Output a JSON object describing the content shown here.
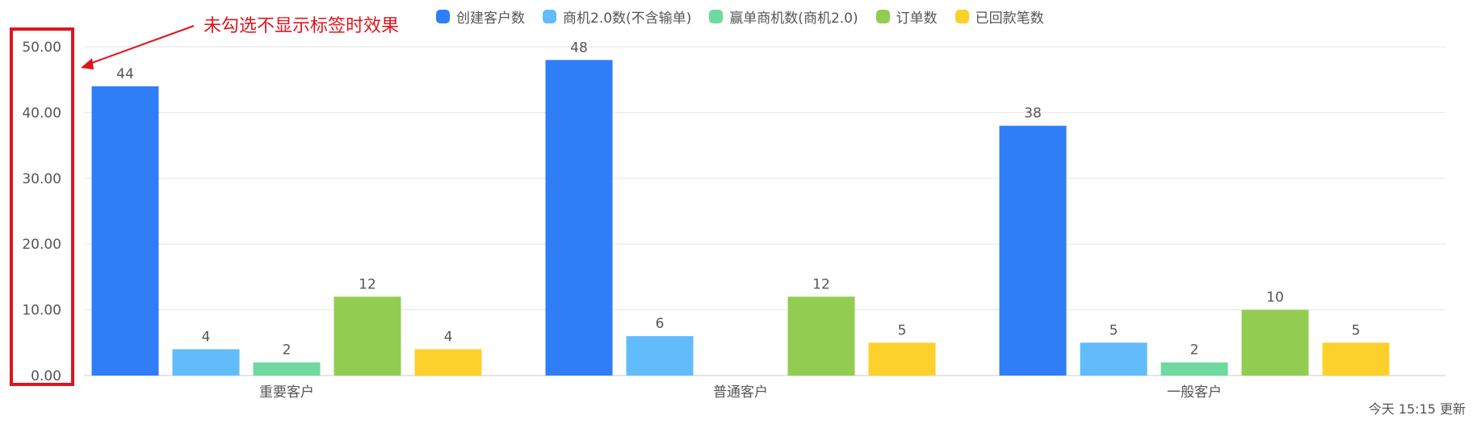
{
  "annotation": "未勾选不显示标签时效果",
  "footer": "今天 15:15 更新",
  "chart_data": {
    "type": "bar",
    "categories": [
      "重要客户",
      "普通客户",
      "一般客户"
    ],
    "ylim": [
      0,
      50
    ],
    "yticks": [
      "0.00",
      "10.00",
      "20.00",
      "30.00",
      "40.00",
      "50.00"
    ],
    "grid": true,
    "legend_position": "top",
    "series": [
      {
        "name": "创建客户数",
        "color": "#2f7ef8",
        "values": [
          44,
          48,
          38
        ]
      },
      {
        "name": "商机2.0数(不含输单)",
        "color": "#62bbfb",
        "values": [
          4,
          6,
          5
        ]
      },
      {
        "name": "赢单商机数(商机2.0)",
        "color": "#6ed9a0",
        "values": [
          2,
          0,
          2
        ]
      },
      {
        "name": "订单数",
        "color": "#92cd52",
        "values": [
          12,
          12,
          10
        ]
      },
      {
        "name": "已回款笔数",
        "color": "#fdd12c",
        "values": [
          4,
          5,
          5
        ]
      }
    ]
  }
}
